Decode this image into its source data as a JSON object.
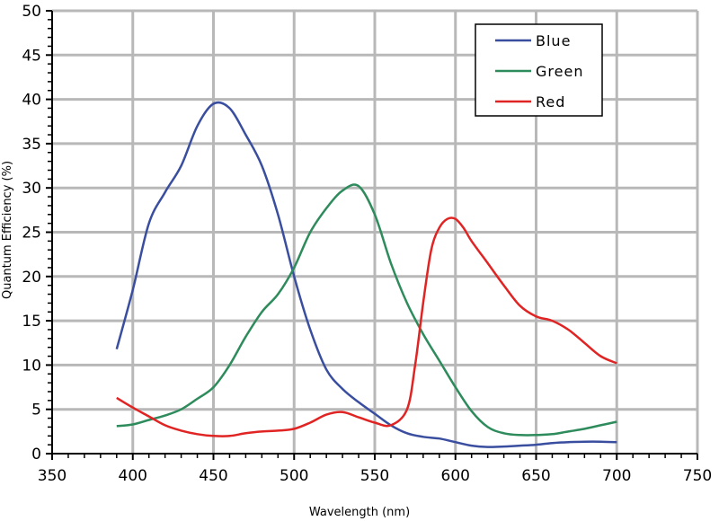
{
  "chart_data": {
    "type": "line",
    "title": "",
    "xlabel": "Wavelength (nm)",
    "ylabel": "Quantum Efficiency (%)",
    "xlim": [
      350,
      750
    ],
    "ylim": [
      0,
      50
    ],
    "xticks": [
      350,
      400,
      450,
      500,
      550,
      600,
      650,
      700,
      750
    ],
    "yticks": [
      0,
      5,
      10,
      15,
      20,
      25,
      30,
      35,
      40,
      45,
      50
    ],
    "grid": true,
    "legend": "top-right",
    "series": [
      {
        "name": "Blue",
        "color": "#3a4ea0",
        "x": [
          390,
          400,
          410,
          420,
          430,
          440,
          450,
          460,
          470,
          480,
          490,
          500,
          510,
          520,
          530,
          540,
          550,
          560,
          570,
          580,
          590,
          600,
          610,
          620,
          630,
          640,
          650,
          660,
          670,
          680,
          690,
          700
        ],
        "y": [
          11.8,
          18.5,
          26.0,
          29.5,
          32.5,
          37.0,
          39.5,
          39.0,
          36.0,
          32.5,
          27.0,
          20.0,
          14.0,
          9.5,
          7.3,
          5.8,
          4.5,
          3.2,
          2.3,
          1.9,
          1.7,
          1.3,
          0.9,
          0.75,
          0.8,
          0.9,
          1.0,
          1.2,
          1.3,
          1.35,
          1.35,
          1.3
        ]
      },
      {
        "name": "Green",
        "color": "#2e8b5c",
        "x": [
          390,
          400,
          410,
          420,
          430,
          440,
          450,
          460,
          470,
          480,
          490,
          500,
          510,
          520,
          530,
          540,
          550,
          560,
          570,
          580,
          590,
          600,
          610,
          620,
          630,
          640,
          650,
          660,
          670,
          680,
          690,
          700
        ],
        "y": [
          3.1,
          3.3,
          3.8,
          4.3,
          5.0,
          6.2,
          7.5,
          10.0,
          13.2,
          16.0,
          18.0,
          21.0,
          25.0,
          27.7,
          29.7,
          30.2,
          27.0,
          21.5,
          17.0,
          13.5,
          10.5,
          7.5,
          4.8,
          3.0,
          2.3,
          2.1,
          2.1,
          2.2,
          2.5,
          2.8,
          3.2,
          3.6
        ]
      },
      {
        "name": "Red",
        "color": "#e02424",
        "x": [
          390,
          400,
          410,
          420,
          430,
          440,
          450,
          460,
          470,
          480,
          490,
          500,
          510,
          520,
          530,
          540,
          550,
          560,
          570,
          575,
          580,
          585,
          590,
          595,
          600,
          605,
          610,
          620,
          630,
          640,
          650,
          660,
          670,
          680,
          690,
          700
        ],
        "y": [
          6.3,
          5.2,
          4.2,
          3.2,
          2.6,
          2.2,
          2.0,
          2.0,
          2.3,
          2.5,
          2.6,
          2.8,
          3.5,
          4.4,
          4.7,
          4.1,
          3.5,
          3.2,
          5.0,
          10.0,
          17.0,
          23.0,
          25.5,
          26.5,
          26.5,
          25.5,
          24.0,
          21.5,
          19.0,
          16.7,
          15.5,
          15.0,
          14.0,
          12.5,
          11.0,
          10.2
        ]
      }
    ]
  }
}
